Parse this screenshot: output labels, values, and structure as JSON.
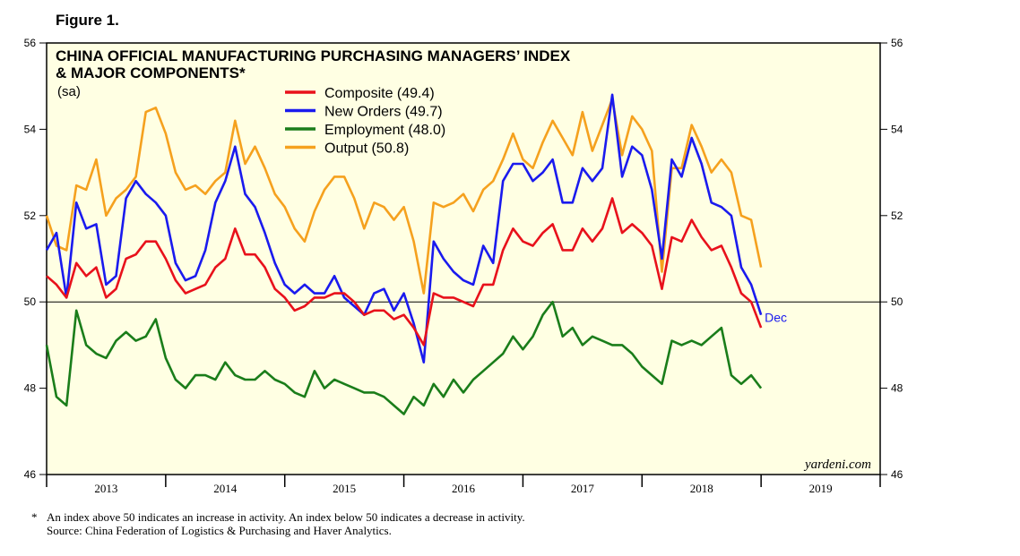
{
  "figure_label": "Figure 1.",
  "chart_data": {
    "type": "line",
    "title": [
      "CHINA OFFICIAL MANUFACTURING PURCHASING MANAGERS’ INDEX",
      "& MAJOR COMPONENTS*"
    ],
    "subtitle": "(sa)",
    "x": [
      2013,
      2013.083,
      2013.167,
      2013.25,
      2013.333,
      2013.417,
      2013.5,
      2013.583,
      2013.667,
      2013.75,
      2013.833,
      2013.917,
      2014,
      2014.083,
      2014.167,
      2014.25,
      2014.333,
      2014.417,
      2014.5,
      2014.583,
      2014.667,
      2014.75,
      2014.833,
      2014.917,
      2015,
      2015.083,
      2015.167,
      2015.25,
      2015.333,
      2015.417,
      2015.5,
      2015.583,
      2015.667,
      2015.75,
      2015.833,
      2015.917,
      2016,
      2016.083,
      2016.167,
      2016.25,
      2016.333,
      2016.417,
      2016.5,
      2016.583,
      2016.667,
      2016.75,
      2016.833,
      2016.917,
      2017,
      2017.083,
      2017.167,
      2017.25,
      2017.333,
      2017.417,
      2017.5,
      2017.583,
      2017.667,
      2017.75,
      2017.833,
      2017.917,
      2018,
      2018.083,
      2018.167,
      2018.25,
      2018.333,
      2018.417,
      2018.5,
      2018.583,
      2018.667,
      2018.75,
      2018.833,
      2018.917,
      2019
    ],
    "series": [
      {
        "name": "Composite (49.4)",
        "color": "#e8111b",
        "values": [
          50.6,
          50.4,
          50.1,
          50.9,
          50.6,
          50.8,
          50.1,
          50.3,
          51.0,
          51.1,
          51.4,
          51.4,
          51.0,
          50.5,
          50.2,
          50.3,
          50.4,
          50.8,
          51.0,
          51.7,
          51.1,
          51.1,
          50.8,
          50.3,
          50.1,
          49.8,
          49.9,
          50.1,
          50.1,
          50.2,
          50.2,
          50.0,
          49.7,
          49.8,
          49.8,
          49.6,
          49.7,
          49.4,
          49.0,
          50.2,
          50.1,
          50.1,
          50.0,
          49.9,
          50.4,
          50.4,
          51.2,
          51.7,
          51.4,
          51.3,
          51.6,
          51.8,
          51.2,
          51.2,
          51.7,
          51.4,
          51.7,
          52.4,
          51.6,
          51.8,
          51.6,
          51.3,
          50.3,
          51.5,
          51.4,
          51.9,
          51.5,
          51.2,
          51.3,
          50.8,
          50.2,
          50.0,
          49.4
        ]
      },
      {
        "name": "New Orders (49.7)",
        "color": "#1a1aee",
        "values": [
          51.2,
          51.6,
          50.1,
          52.3,
          51.7,
          51.8,
          50.4,
          50.6,
          52.4,
          52.8,
          52.5,
          52.3,
          52.0,
          50.9,
          50.5,
          50.6,
          51.2,
          52.3,
          52.8,
          53.6,
          52.5,
          52.2,
          51.6,
          50.9,
          50.4,
          50.2,
          50.4,
          50.2,
          50.2,
          50.6,
          50.1,
          49.9,
          49.7,
          50.2,
          50.3,
          49.8,
          50.2,
          49.5,
          48.6,
          51.4,
          51.0,
          50.7,
          50.5,
          50.4,
          51.3,
          50.9,
          52.8,
          53.2,
          53.2,
          52.8,
          53.0,
          53.3,
          52.3,
          52.3,
          53.1,
          52.8,
          53.1,
          54.8,
          52.9,
          53.6,
          53.4,
          52.6,
          51.0,
          53.3,
          52.9,
          53.8,
          53.2,
          52.3,
          52.2,
          52.0,
          50.8,
          50.4,
          49.7
        ]
      },
      {
        "name": "Employment (48.0)",
        "color": "#1a7d1a",
        "values": [
          49.0,
          47.8,
          47.6,
          49.8,
          49.0,
          48.8,
          48.7,
          49.1,
          49.3,
          49.1,
          49.2,
          49.6,
          48.7,
          48.2,
          48.0,
          48.3,
          48.3,
          48.2,
          48.6,
          48.3,
          48.2,
          48.2,
          48.4,
          48.2,
          48.1,
          47.9,
          47.8,
          48.4,
          48.0,
          48.2,
          48.1,
          48.0,
          47.9,
          47.9,
          47.8,
          47.6,
          47.4,
          47.8,
          47.6,
          48.1,
          47.8,
          48.2,
          47.9,
          48.2,
          48.4,
          48.6,
          48.8,
          49.2,
          48.9,
          49.2,
          49.7,
          50.0,
          49.2,
          49.4,
          49.0,
          49.2,
          49.1,
          49.0,
          49.0,
          48.8,
          48.5,
          48.3,
          48.1,
          49.1,
          49.0,
          49.1,
          49.0,
          49.2,
          49.4,
          48.3,
          48.1,
          48.3,
          48.0
        ]
      },
      {
        "name": "Output (50.8)",
        "color": "#f5a11e",
        "values": [
          52.0,
          51.3,
          51.2,
          52.7,
          52.6,
          53.3,
          52.0,
          52.4,
          52.6,
          52.9,
          54.4,
          54.5,
          53.9,
          53.0,
          52.6,
          52.7,
          52.5,
          52.8,
          53.0,
          54.2,
          53.2,
          53.6,
          53.1,
          52.5,
          52.2,
          51.7,
          51.4,
          52.1,
          52.6,
          52.9,
          52.9,
          52.4,
          51.7,
          52.3,
          52.2,
          51.9,
          52.2,
          51.4,
          50.2,
          52.3,
          52.2,
          52.3,
          52.5,
          52.1,
          52.6,
          52.8,
          53.3,
          53.9,
          53.3,
          53.1,
          53.7,
          54.2,
          53.8,
          53.4,
          54.4,
          53.5,
          54.1,
          54.7,
          53.4,
          54.3,
          54.0,
          53.5,
          50.7,
          53.1,
          53.1,
          54.1,
          53.6,
          53.0,
          53.3,
          53.0,
          52.0,
          51.9,
          50.8
        ]
      }
    ],
    "xlim": [
      2013,
      2020
    ],
    "xticks": [
      2013,
      2014,
      2015,
      2016,
      2017,
      2018,
      2019,
      2020
    ],
    "year_labels": [
      "2013",
      "2014",
      "2015",
      "2016",
      "2017",
      "2018",
      "2019"
    ],
    "ylim": [
      46,
      56
    ],
    "yticks": [
      46,
      48,
      50,
      52,
      54,
      56
    ],
    "reference_line": 50,
    "annotation": {
      "text": "Dec",
      "color": "#1a1aee"
    },
    "source_mark": "yardeni.com",
    "footnote_marker": "*",
    "notes": [
      "An index above 50 indicates an increase in activity. An index below 50 indicates a decrease in activity.",
      "Source: China Federation of Logistics & Purchasing and Haver Analytics."
    ]
  }
}
